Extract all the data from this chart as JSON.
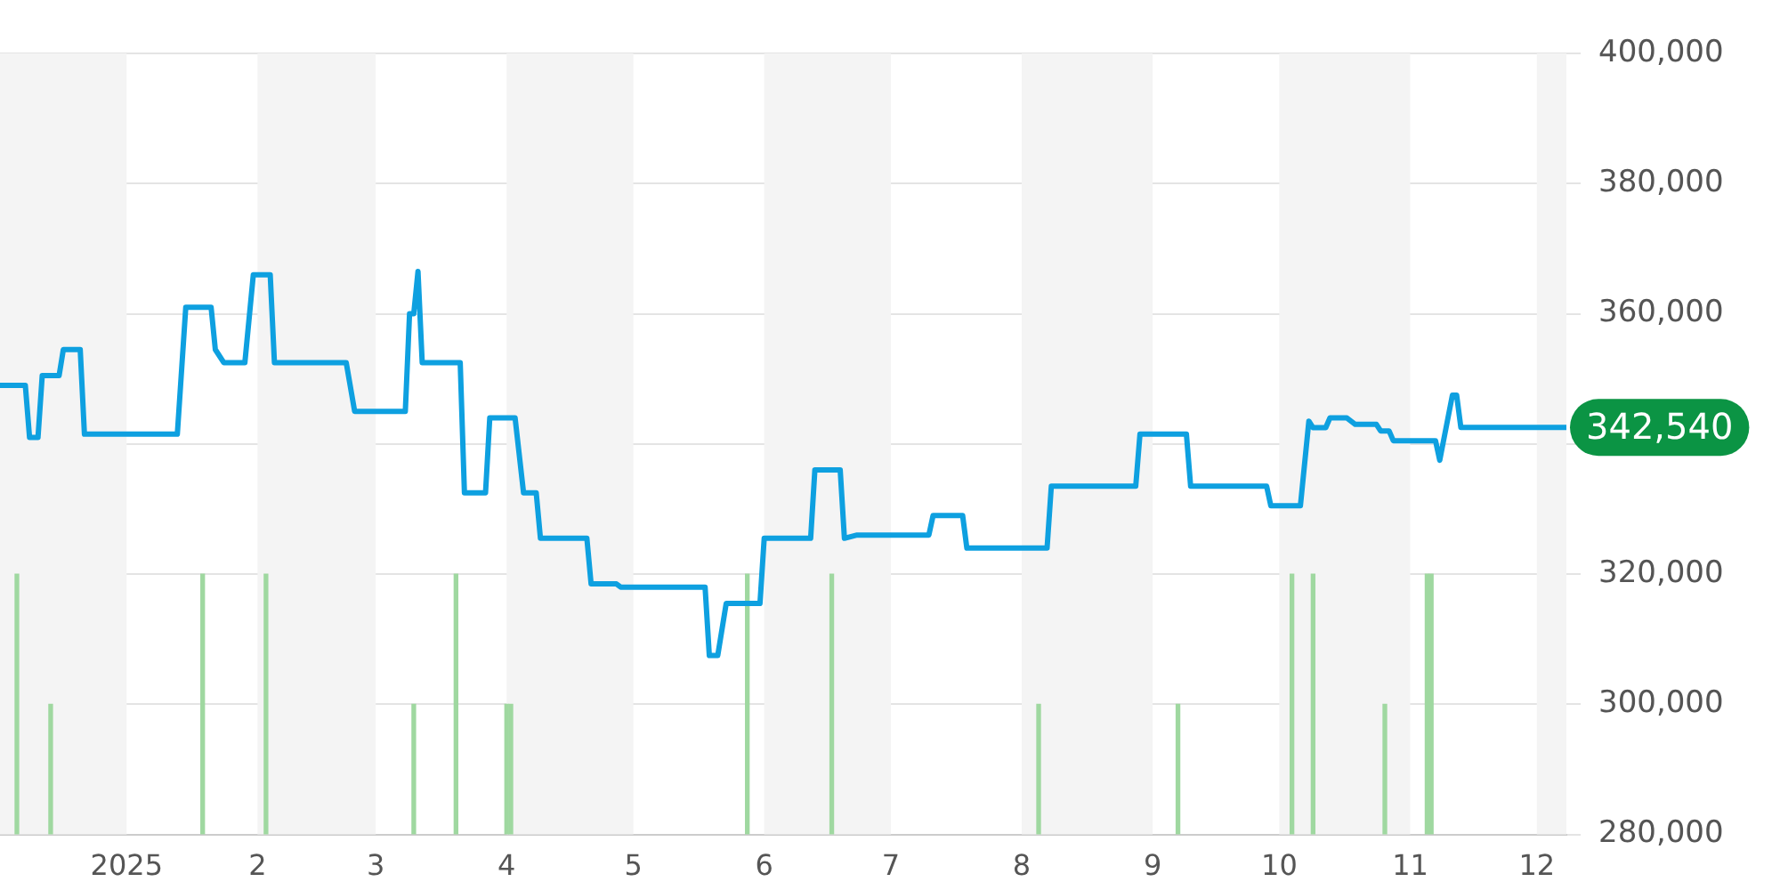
{
  "chart_data": {
    "type": "line",
    "xlim": [
      "2024-12-02",
      "2025-12-08"
    ],
    "xticks": [
      {
        "value": "2025-01-01",
        "label": "2025"
      },
      {
        "value": "2025-02-01",
        "label": "2"
      },
      {
        "value": "2025-03-01",
        "label": "3"
      },
      {
        "value": "2025-04-01",
        "label": "4"
      },
      {
        "value": "2025-05-01",
        "label": "5"
      },
      {
        "value": "2025-06-01",
        "label": "6"
      },
      {
        "value": "2025-07-01",
        "label": "7"
      },
      {
        "value": "2025-08-01",
        "label": "8"
      },
      {
        "value": "2025-09-01",
        "label": "9"
      },
      {
        "value": "2025-10-01",
        "label": "10"
      },
      {
        "value": "2025-11-01",
        "label": "11"
      },
      {
        "value": "2025-12-01",
        "label": "12"
      }
    ],
    "ylim": [
      280000,
      400000
    ],
    "yticks": [
      {
        "value": 280000,
        "label": "280,000"
      },
      {
        "value": 300000,
        "label": "300,000"
      },
      {
        "value": 320000,
        "label": "320,000"
      },
      {
        "value": 340000,
        "label": null
      },
      {
        "value": 360000,
        "label": "360,000"
      },
      {
        "value": 380000,
        "label": "380,000"
      },
      {
        "value": 400000,
        "label": "400,000"
      }
    ],
    "grid": "y",
    "legend": false,
    "marker": "none",
    "line_style": "solid",
    "bands": [
      {
        "axis": "x",
        "from": "2024-12-02",
        "to": "2025-01-01",
        "color": "#f4f4f4"
      },
      {
        "axis": "x",
        "from": "2025-02-01",
        "to": "2025-03-01",
        "color": "#f4f4f4"
      },
      {
        "axis": "x",
        "from": "2025-04-01",
        "to": "2025-05-01",
        "color": "#f4f4f4"
      },
      {
        "axis": "x",
        "from": "2025-06-01",
        "to": "2025-07-01",
        "color": "#f4f4f4"
      },
      {
        "axis": "x",
        "from": "2025-08-01",
        "to": "2025-09-01",
        "color": "#f4f4f4"
      },
      {
        "axis": "x",
        "from": "2025-10-01",
        "to": "2025-11-01",
        "color": "#f4f4f4"
      },
      {
        "axis": "x",
        "from": "2025-12-01",
        "to": "2025-12-08",
        "color": "#f4f4f4"
      }
    ],
    "annotations": [
      "342,540"
    ],
    "series": [
      {
        "type": "bar",
        "color": "#9fd8a0",
        "x": [
          "2024-12-06",
          "2024-12-14",
          "2025-01-19",
          "2025-02-03",
          "2025-03-10",
          "2025-03-20",
          "2025-04-01",
          "2025-04-02",
          "2025-05-28",
          "2025-06-17",
          "2025-08-05",
          "2025-09-07",
          "2025-10-04",
          "2025-10-09",
          "2025-10-26",
          "2025-11-05",
          "2025-11-06"
        ],
        "values": [
          320000,
          300000,
          320000,
          320000,
          300000,
          320000,
          300000,
          300000,
          320000,
          320000,
          300000,
          300000,
          320000,
          320000,
          300000,
          320000,
          320000
        ]
      },
      {
        "color": "#0ea0e0",
        "x": [
          "2024-12-02",
          "2024-12-08",
          "2024-12-09",
          "2024-12-11",
          "2024-12-12",
          "2024-12-16",
          "2024-12-17",
          "2024-12-21",
          "2024-12-22",
          "2025-01-13",
          "2025-01-15",
          "2025-01-21",
          "2025-01-22",
          "2025-01-24",
          "2025-01-29",
          "2025-01-31",
          "2025-02-04",
          "2025-02-05",
          "2025-02-22",
          "2025-02-24",
          "2025-03-08",
          "2025-03-09",
          "2025-03-10",
          "2025-03-11",
          "2025-03-12",
          "2025-03-21",
          "2025-03-22",
          "2025-03-27",
          "2025-03-28",
          "2025-04-03",
          "2025-04-05",
          "2025-04-08",
          "2025-04-09",
          "2025-04-20",
          "2025-04-21",
          "2025-04-27",
          "2025-04-28",
          "2025-05-18",
          "2025-05-19",
          "2025-05-21",
          "2025-05-23",
          "2025-05-31",
          "2025-06-01",
          "2025-06-12",
          "2025-06-13",
          "2025-06-19",
          "2025-06-20",
          "2025-06-23",
          "2025-07-10",
          "2025-07-11",
          "2025-07-18",
          "2025-07-19",
          "2025-08-07",
          "2025-08-08",
          "2025-08-28",
          "2025-08-29",
          "2025-09-09",
          "2025-09-10",
          "2025-09-28",
          "2025-09-29",
          "2025-10-06",
          "2025-10-08",
          "2025-10-09",
          "2025-10-12",
          "2025-10-13",
          "2025-10-17",
          "2025-10-19",
          "2025-10-24",
          "2025-10-25",
          "2025-10-27",
          "2025-10-28",
          "2025-11-07",
          "2025-11-08",
          "2025-11-11",
          "2025-11-12",
          "2025-11-13",
          "2025-12-08"
        ],
        "values": [
          349000,
          349000,
          341000,
          341000,
          350500,
          350500,
          354500,
          354500,
          341500,
          341500,
          361000,
          361000,
          354500,
          352500,
          352500,
          366000,
          366000,
          352500,
          352500,
          345000,
          345000,
          360000,
          360000,
          366500,
          352500,
          352500,
          332500,
          332500,
          344000,
          344000,
          332500,
          332500,
          325500,
          325500,
          318500,
          318500,
          318000,
          318000,
          307500,
          307500,
          315500,
          315500,
          325500,
          325500,
          336000,
          336000,
          325500,
          326000,
          326000,
          329000,
          329000,
          324000,
          324000,
          333500,
          333500,
          341500,
          341500,
          333500,
          333500,
          330500,
          330500,
          343500,
          342500,
          342500,
          344000,
          344000,
          343000,
          343000,
          342000,
          342000,
          340500,
          340500,
          337500,
          347500,
          347500,
          342540,
          342540
        ]
      }
    ]
  }
}
